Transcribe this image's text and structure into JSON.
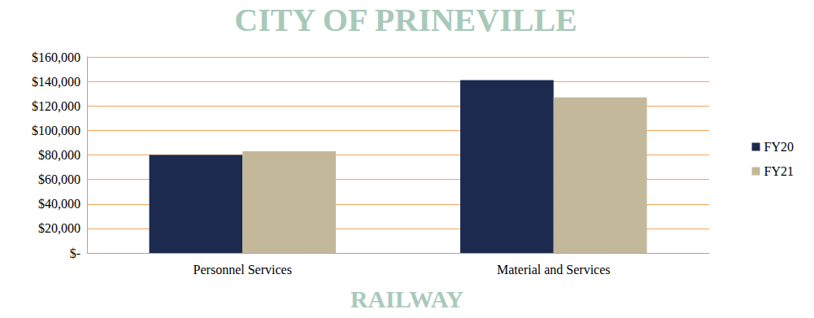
{
  "chart_data": {
    "type": "bar",
    "categories": [
      "Personnel Services",
      "Material and Services"
    ],
    "series": [
      {
        "name": "FY20",
        "color": "#1b2a4e",
        "values": [
          80000,
          141000
        ]
      },
      {
        "name": "FY21",
        "color": "#c4b89a",
        "values": [
          83000,
          127000
        ]
      }
    ],
    "ylim": [
      0,
      160000
    ],
    "yticks": [
      {
        "value": 0,
        "label": "$-"
      },
      {
        "value": 20000,
        "label": "$20,000"
      },
      {
        "value": 40000,
        "label": "$40,000"
      },
      {
        "value": 60000,
        "label": "$60,000"
      },
      {
        "value": 80000,
        "label": "$80,000"
      },
      {
        "value": 100000,
        "label": "$100,000"
      },
      {
        "value": 120000,
        "label": "$120,000"
      },
      {
        "value": 140000,
        "label": "$140,000"
      },
      {
        "value": 160000,
        "label": "$160,000"
      }
    ],
    "grid": true,
    "legend": "right",
    "annotations": [
      "CITY OF PRINEVILLE",
      "RAILWAY"
    ]
  }
}
